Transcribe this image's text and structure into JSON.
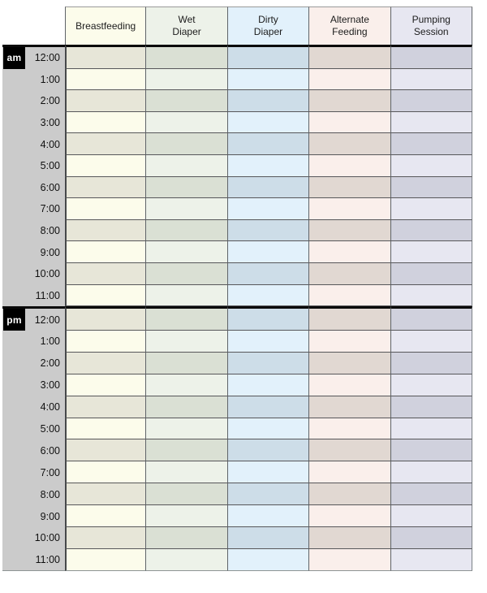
{
  "table": {
    "columns": [
      {
        "id": "breastfeeding",
        "label": "Breastfeeding",
        "light": "#fcfceb",
        "dark": "#e7e6d8"
      },
      {
        "id": "wet-diaper",
        "label": "Wet\nDiaper",
        "light": "#edf2e9",
        "dark": "#dae0d4"
      },
      {
        "id": "dirty-diaper",
        "label": "Dirty\nDiaper",
        "light": "#e2f1fb",
        "dark": "#cddde8"
      },
      {
        "id": "alternate-feeding",
        "label": "Alternate\nFeeding",
        "light": "#faefeb",
        "dark": "#e1d8d2"
      },
      {
        "id": "pumping-session",
        "label": "Pumping\nSession",
        "light": "#e7e7f1",
        "dark": "#d0d1dd"
      }
    ],
    "sections": [
      {
        "period": "am",
        "times": [
          "12:00",
          "1:00",
          "2:00",
          "3:00",
          "4:00",
          "5:00",
          "6:00",
          "7:00",
          "8:00",
          "9:00",
          "10:00",
          "11:00"
        ]
      },
      {
        "period": "pm",
        "times": [
          "12:00",
          "1:00",
          "2:00",
          "3:00",
          "4:00",
          "5:00",
          "6:00",
          "7:00",
          "8:00",
          "9:00",
          "10:00",
          "11:00"
        ]
      }
    ]
  },
  "colors": {
    "page_bg": "#ffffff",
    "time_column_bg": "#cbcbcb",
    "period_badge_bg": "#000000",
    "period_badge_text": "#ffffff",
    "grid_line": "#57575a",
    "column_line": "#5f6469",
    "section_divider": "#0a0a0a",
    "header_border": "#9a9a9a",
    "text": "#1c1c1c"
  }
}
